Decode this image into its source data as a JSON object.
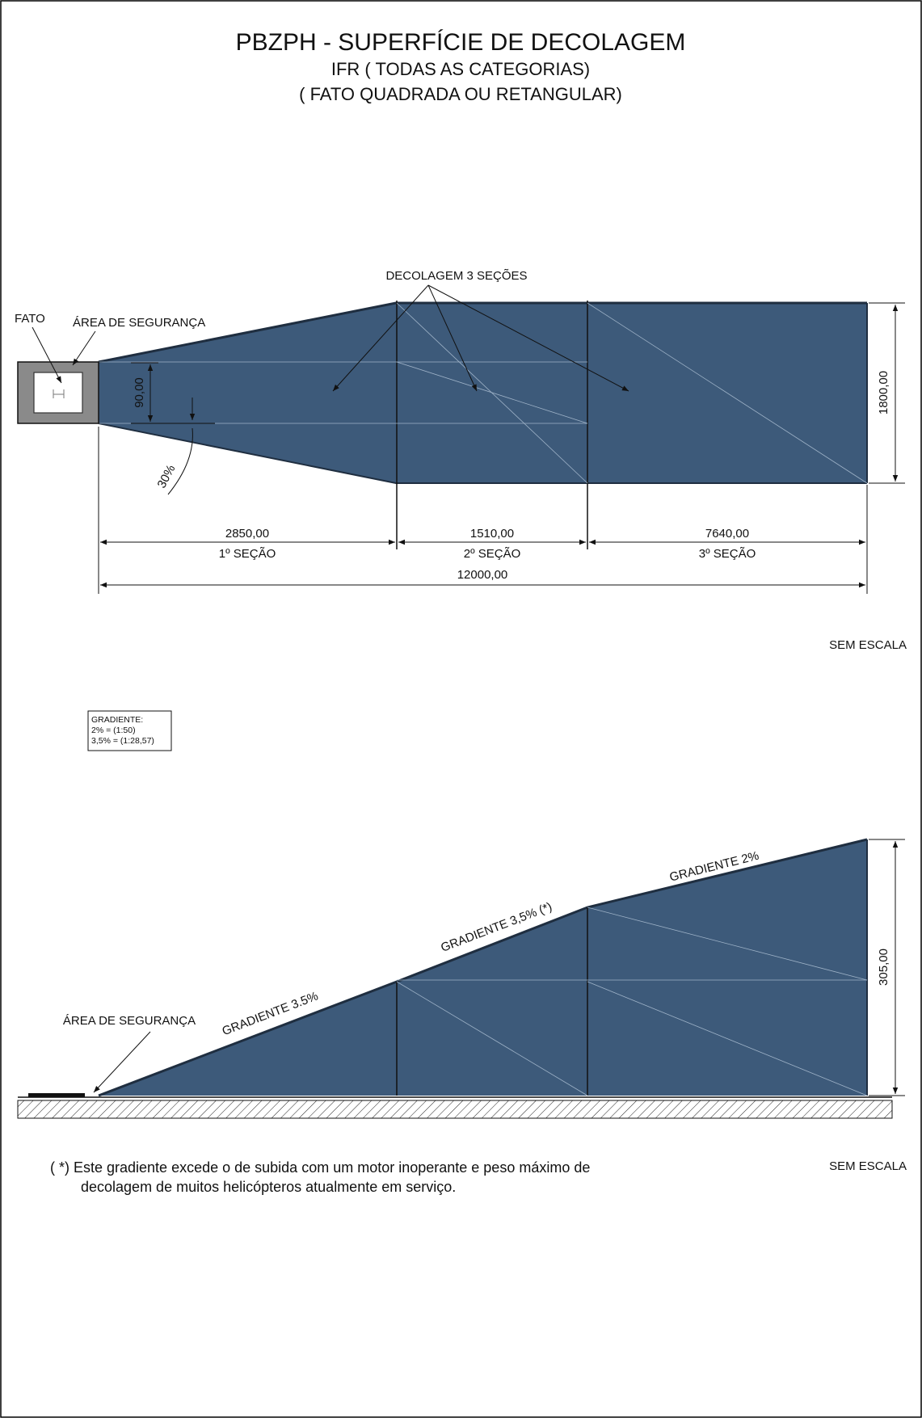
{
  "header": {
    "title": "PBZPH - SUPERFÍCIE DE DECOLAGEM",
    "subtitle1": "IFR (  TODAS AS CATEGORIAS)",
    "subtitle2": "(  FATO QUADRADA OU RETANGULAR)"
  },
  "plan": {
    "callout_sections": "DECOLAGEM 3 SEÇÕES",
    "label_fato": "FATO",
    "label_safety": "ÁREA DE SEGURANÇA",
    "angle": "30%",
    "width_fato": "90,00",
    "width_total": "1800,00",
    "sections": [
      {
        "length": "2850,00",
        "name": "1º SEÇÃO"
      },
      {
        "length": "1510,00",
        "name": "2º SEÇÃO"
      },
      {
        "length": "7640,00",
        "name": "3º SEÇÃO"
      }
    ],
    "total_length": "12000,00",
    "scale_note": "SEM ESCALA"
  },
  "legend": {
    "title": "GRADIENTE:",
    "line1": "2% = (1:50)",
    "line2": "3,5% = (1:28,57)"
  },
  "profile": {
    "label_safety": "ÁREA DE SEGURANÇA",
    "gradient1": "GRADIENTE 3.5%",
    "gradient2": "GRADIENTE 3,5% (*)",
    "gradient3": "GRADIENTE 2%",
    "height": "305,00",
    "scale_note": "SEM ESCALA"
  },
  "footnote": {
    "line1": "(  *)  Este gradiente excede o de subida com um motor inoperante e peso máximo de",
    "line2": "decolagem de muitos helicópteros atualmente em serviço."
  },
  "colors": {
    "surface": "#3d5a7a",
    "frame": "#000000",
    "fato_gray": "#8a8a8a"
  }
}
